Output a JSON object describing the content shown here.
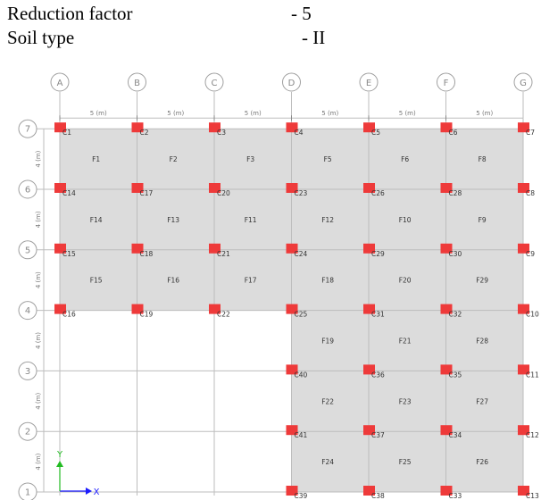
{
  "params": [
    {
      "label": "Reduction factor",
      "value": "- 5"
    },
    {
      "label": "Soil type",
      "value": "- II"
    }
  ],
  "grid": {
    "x_axes": [
      "A",
      "B",
      "C",
      "D",
      "E",
      "F",
      "G"
    ],
    "y_axes": [
      "1",
      "2",
      "3",
      "4",
      "5",
      "6",
      "7"
    ],
    "x_spacing_label": "5 (m)",
    "y_spacing_label": "4 (m)"
  },
  "columns": [
    {
      "id": "C1",
      "gx": 0,
      "gy": 6
    },
    {
      "id": "C2",
      "gx": 1,
      "gy": 6
    },
    {
      "id": "C3",
      "gx": 2,
      "gy": 6
    },
    {
      "id": "C4",
      "gx": 3,
      "gy": 6
    },
    {
      "id": "C5",
      "gx": 4,
      "gy": 6
    },
    {
      "id": "C6",
      "gx": 5,
      "gy": 6
    },
    {
      "id": "C7",
      "gx": 6,
      "gy": 6
    },
    {
      "id": "C14",
      "gx": 0,
      "gy": 5
    },
    {
      "id": "C17",
      "gx": 1,
      "gy": 5
    },
    {
      "id": "C20",
      "gx": 2,
      "gy": 5
    },
    {
      "id": "C23",
      "gx": 3,
      "gy": 5
    },
    {
      "id": "C26",
      "gx": 4,
      "gy": 5
    },
    {
      "id": "C28",
      "gx": 5,
      "gy": 5
    },
    {
      "id": "C8",
      "gx": 6,
      "gy": 5
    },
    {
      "id": "C15",
      "gx": 0,
      "gy": 4
    },
    {
      "id": "C18",
      "gx": 1,
      "gy": 4
    },
    {
      "id": "C21",
      "gx": 2,
      "gy": 4
    },
    {
      "id": "C24",
      "gx": 3,
      "gy": 4
    },
    {
      "id": "C29",
      "gx": 4,
      "gy": 4
    },
    {
      "id": "C30",
      "gx": 5,
      "gy": 4
    },
    {
      "id": "C9",
      "gx": 6,
      "gy": 4
    },
    {
      "id": "C16",
      "gx": 0,
      "gy": 3
    },
    {
      "id": "C19",
      "gx": 1,
      "gy": 3
    },
    {
      "id": "C22",
      "gx": 2,
      "gy": 3
    },
    {
      "id": "C25",
      "gx": 3,
      "gy": 3
    },
    {
      "id": "C31",
      "gx": 4,
      "gy": 3
    },
    {
      "id": "C32",
      "gx": 5,
      "gy": 3
    },
    {
      "id": "C10",
      "gx": 6,
      "gy": 3
    },
    {
      "id": "C40",
      "gx": 3,
      "gy": 2
    },
    {
      "id": "C36",
      "gx": 4,
      "gy": 2
    },
    {
      "id": "C35",
      "gx": 5,
      "gy": 2
    },
    {
      "id": "C11",
      "gx": 6,
      "gy": 2
    },
    {
      "id": "C41",
      "gx": 3,
      "gy": 1
    },
    {
      "id": "C37",
      "gx": 4,
      "gy": 1
    },
    {
      "id": "C34",
      "gx": 5,
      "gy": 1
    },
    {
      "id": "C12",
      "gx": 6,
      "gy": 1
    },
    {
      "id": "C39",
      "gx": 3,
      "gy": 0
    },
    {
      "id": "C38",
      "gx": 4,
      "gy": 0
    },
    {
      "id": "C33",
      "gx": 5,
      "gy": 0
    },
    {
      "id": "C13",
      "gx": 6,
      "gy": 0
    }
  ],
  "panels": [
    {
      "id": "F1",
      "gx": 0,
      "gy": 5
    },
    {
      "id": "F2",
      "gx": 1,
      "gy": 5
    },
    {
      "id": "F3",
      "gx": 2,
      "gy": 5
    },
    {
      "id": "F5",
      "gx": 3,
      "gy": 5
    },
    {
      "id": "F6",
      "gx": 4,
      "gy": 5
    },
    {
      "id": "F8",
      "gx": 5,
      "gy": 5
    },
    {
      "id": "F14",
      "gx": 0,
      "gy": 4
    },
    {
      "id": "F13",
      "gx": 1,
      "gy": 4
    },
    {
      "id": "F11",
      "gx": 2,
      "gy": 4
    },
    {
      "id": "F12",
      "gx": 3,
      "gy": 4
    },
    {
      "id": "F10",
      "gx": 4,
      "gy": 4
    },
    {
      "id": "F9",
      "gx": 5,
      "gy": 4
    },
    {
      "id": "F15",
      "gx": 0,
      "gy": 3
    },
    {
      "id": "F16",
      "gx": 1,
      "gy": 3
    },
    {
      "id": "F17",
      "gx": 2,
      "gy": 3
    },
    {
      "id": "F18",
      "gx": 3,
      "gy": 3
    },
    {
      "id": "F20",
      "gx": 4,
      "gy": 3
    },
    {
      "id": "F29",
      "gx": 5,
      "gy": 3
    },
    {
      "id": "F19",
      "gx": 3,
      "gy": 2
    },
    {
      "id": "F21",
      "gx": 4,
      "gy": 2
    },
    {
      "id": "F28",
      "gx": 5,
      "gy": 2
    },
    {
      "id": "F22",
      "gx": 3,
      "gy": 1
    },
    {
      "id": "F23",
      "gx": 4,
      "gy": 1
    },
    {
      "id": "F27",
      "gx": 5,
      "gy": 1
    },
    {
      "id": "F24",
      "gx": 3,
      "gy": 0
    },
    {
      "id": "F25",
      "gx": 4,
      "gy": 0
    },
    {
      "id": "F26",
      "gx": 5,
      "gy": 0
    }
  ],
  "axis_indicator": {
    "x_label": "X",
    "y_label": "Y"
  },
  "colors": {
    "slab": "#dcdcdc",
    "column": "#ee3a3a",
    "grid_line": "#bdbdbd",
    "bubble": "#a0a0a0",
    "axis_x": "#1c1cff",
    "axis_y": "#22bb22"
  }
}
